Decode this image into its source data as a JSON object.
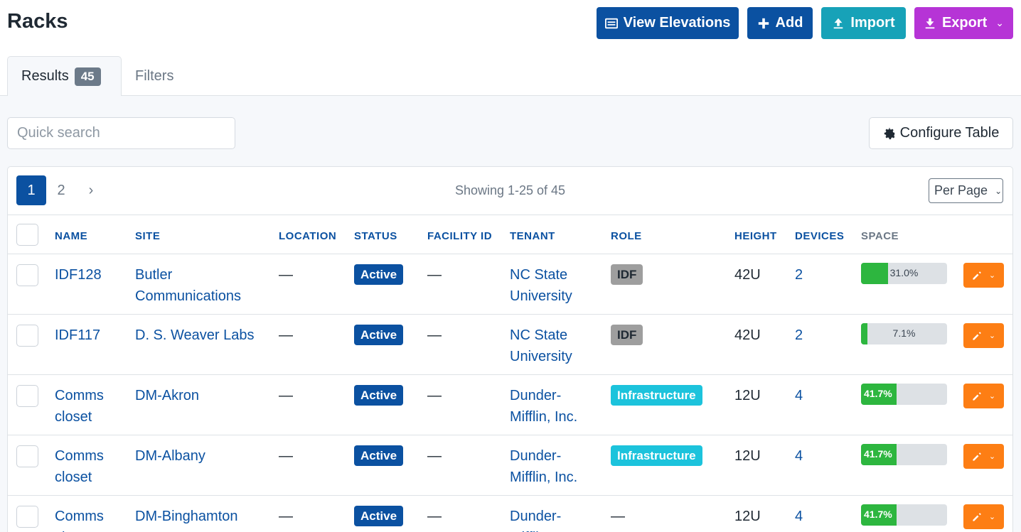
{
  "page": {
    "title": "Racks"
  },
  "actions": {
    "view_elevations": "View Elevations",
    "add": "Add",
    "import": "Import",
    "export": "Export"
  },
  "tabs": {
    "results_label": "Results",
    "results_count": "45",
    "filters_label": "Filters"
  },
  "search": {
    "placeholder": "Quick search",
    "value": ""
  },
  "configure_table": "Configure Table",
  "pagination": {
    "pages": [
      "1",
      "2"
    ],
    "next": "›",
    "showing": "Showing 1-25 of 45",
    "per_page": "Per Page"
  },
  "columns": {
    "name": "NAME",
    "site": "SITE",
    "location": "LOCATION",
    "status": "STATUS",
    "facility_id": "FACILITY ID",
    "tenant": "TENANT",
    "role": "ROLE",
    "height": "HEIGHT",
    "devices": "DEVICES",
    "space": "SPACE"
  },
  "rows": [
    {
      "name": "IDF128",
      "site": "Butler Communications",
      "location": "—",
      "status": "Active",
      "facility_id": "—",
      "tenant": "NC State University",
      "role": "IDF",
      "height": "42U",
      "devices": "2",
      "space_label": "31.0%",
      "space_fraction": 0.31
    },
    {
      "name": "IDF117",
      "site": "D. S. Weaver Labs",
      "location": "—",
      "status": "Active",
      "facility_id": "—",
      "tenant": "NC State University",
      "role": "IDF",
      "height": "42U",
      "devices": "2",
      "space_label": "7.1%",
      "space_fraction": 0.071
    },
    {
      "name": "Comms closet",
      "site": "DM-Akron",
      "location": "—",
      "status": "Active",
      "facility_id": "—",
      "tenant": "Dunder-Mifflin, Inc.",
      "role": "Infrastructure",
      "height": "12U",
      "devices": "4",
      "space_label": "41.7%",
      "space_fraction": 0.417
    },
    {
      "name": "Comms closet",
      "site": "DM-Albany",
      "location": "—",
      "status": "Active",
      "facility_id": "—",
      "tenant": "Dunder-Mifflin, Inc.",
      "role": "Infrastructure",
      "height": "12U",
      "devices": "4",
      "space_label": "41.7%",
      "space_fraction": 0.417
    },
    {
      "name": "Comms closet",
      "site": "DM-Binghamton",
      "location": "—",
      "status": "Active",
      "facility_id": "—",
      "tenant": "Dunder-Mifflin, Inc.",
      "role": "—",
      "height": "12U",
      "devices": "4",
      "space_label": "41.7%",
      "space_fraction": 0.417
    }
  ],
  "colors": {
    "primary": "#0b51a1",
    "info": "#17a2b8",
    "purple": "#b634d6",
    "orange": "#fd7e14",
    "success": "#2db63f",
    "idf_role": "#9e9e9e",
    "infrastructure_role": "#1cc3dc"
  },
  "icons": {
    "view_elevations": "rack-elevation-icon",
    "add": "plus-icon",
    "import": "upload-icon",
    "export": "download-icon",
    "configure": "gear-icon",
    "edit": "pencil-icon"
  }
}
